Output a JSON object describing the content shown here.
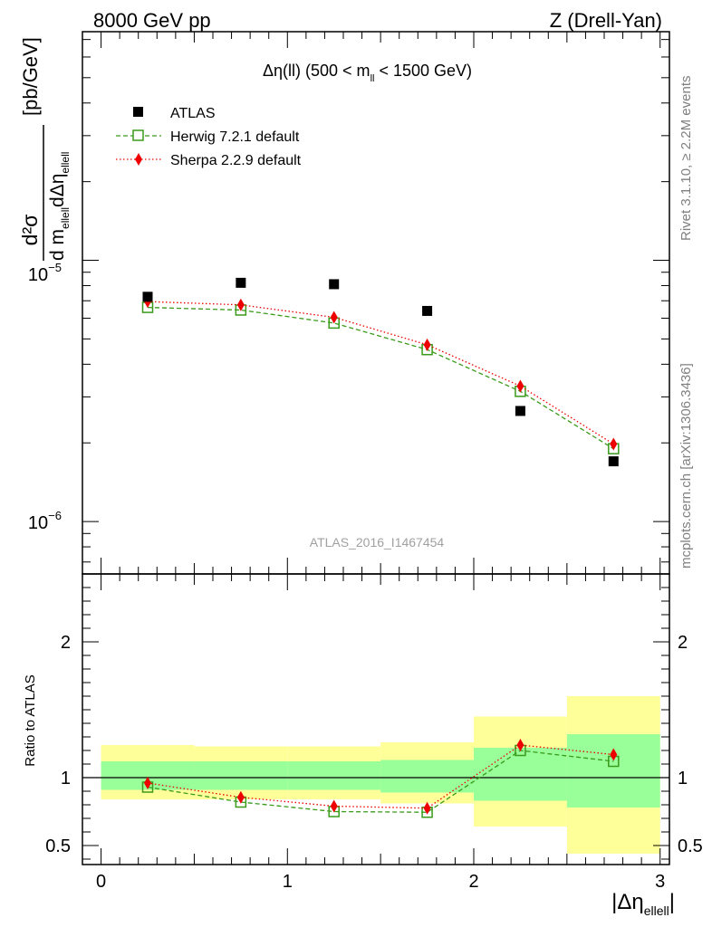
{
  "header": {
    "left": "8000 GeV pp",
    "right": "Z (Drell-Yan)"
  },
  "side_labels": {
    "rivet": "Rivet 3.1.10, ≥ 2.2M events",
    "mcplots": "mcplots.cern.ch [arXiv:1306.3436]"
  },
  "watermark": "ATLAS_2016_I1467454",
  "colors": {
    "atlas": "#000000",
    "herwig": "#3a9a1a",
    "sherpa": "#ee0000",
    "band_inner": "#99ff99",
    "band_outer": "#ffff99"
  },
  "chart_data": [
    {
      "type": "scatter",
      "title": {
        "base": "Δη(ll) (500 < m",
        "sub": "ll",
        "tail": " < 1500 GeV)"
      },
      "ylabel": {
        "num": "d²σ",
        "den_a": "d m",
        "den_sub1": "ellell",
        "den_b": "dΔη",
        "den_sub2": "ellell",
        "unit": "[pb/GeV]"
      },
      "yscale": "log",
      "xlim": [
        -0.1,
        3.05
      ],
      "ylim": [
        6.3e-07,
        7.5e-05
      ],
      "ytick_labels": [
        {
          "value": 1e-05,
          "base": "10",
          "exp": "−5"
        },
        {
          "value": 1e-06,
          "base": "10",
          "exp": "−6"
        }
      ],
      "legend_position": "top-left",
      "x": [
        0.25,
        0.75,
        1.25,
        1.75,
        2.25,
        2.75
      ],
      "series": [
        {
          "name": "ATLAS",
          "marker": "filled-square",
          "values": [
            7.25e-06,
            8.2e-06,
            8.1e-06,
            6.4e-06,
            2.65e-06,
            1.7e-06
          ]
        },
        {
          "name": "Herwig 7.2.1 default",
          "marker": "open-square",
          "line": "dashed",
          "values": [
            6.6e-06,
            6.45e-06,
            5.75e-06,
            4.55e-06,
            3.15e-06,
            1.9e-06
          ]
        },
        {
          "name": "Sherpa 2.2.9 default",
          "marker": "diamond",
          "line": "dotted",
          "values": [
            6.95e-06,
            6.75e-06,
            6.05e-06,
            4.75e-06,
            3.3e-06,
            1.98e-06
          ]
        }
      ]
    },
    {
      "type": "scatter",
      "ylabel": "Ratio to ATLAS",
      "xlabel": {
        "base": "|Δη",
        "sub": "ellell",
        "tail": "|"
      },
      "xlim": [
        -0.1,
        3.05
      ],
      "ylim": [
        0.36,
        2.5
      ],
      "xticks": [
        0,
        1,
        2,
        3
      ],
      "yticks": [
        0.5,
        1,
        2
      ],
      "ytick_labels": [
        "0.5",
        "1",
        "2"
      ],
      "xtick_labels": [
        "0",
        "1",
        "2",
        "3"
      ],
      "reference_line": 1,
      "x_edges": [
        0,
        0.5,
        1,
        1.5,
        2,
        2.5,
        3
      ],
      "bands": {
        "inner": [
          [
            0.91,
            1.12
          ],
          [
            0.91,
            1.12
          ],
          [
            0.91,
            1.12
          ],
          [
            0.89,
            1.13
          ],
          [
            0.83,
            1.22
          ],
          [
            0.78,
            1.32
          ]
        ],
        "outer": [
          [
            0.84,
            1.24
          ],
          [
            0.84,
            1.23
          ],
          [
            0.84,
            1.23
          ],
          [
            0.81,
            1.26
          ],
          [
            0.64,
            1.45
          ],
          [
            0.44,
            1.6
          ]
        ]
      },
      "x": [
        0.25,
        0.75,
        1.25,
        1.75,
        2.25,
        2.75
      ],
      "series": [
        {
          "name": "Herwig 7.2.1 default",
          "marker": "open-square",
          "line": "dashed",
          "values": [
            0.93,
            0.82,
            0.75,
            0.745,
            1.2,
            1.12
          ]
        },
        {
          "name": "Sherpa 2.2.9 default",
          "marker": "diamond",
          "line": "dotted",
          "values": [
            0.96,
            0.855,
            0.79,
            0.775,
            1.24,
            1.17
          ]
        }
      ]
    }
  ]
}
